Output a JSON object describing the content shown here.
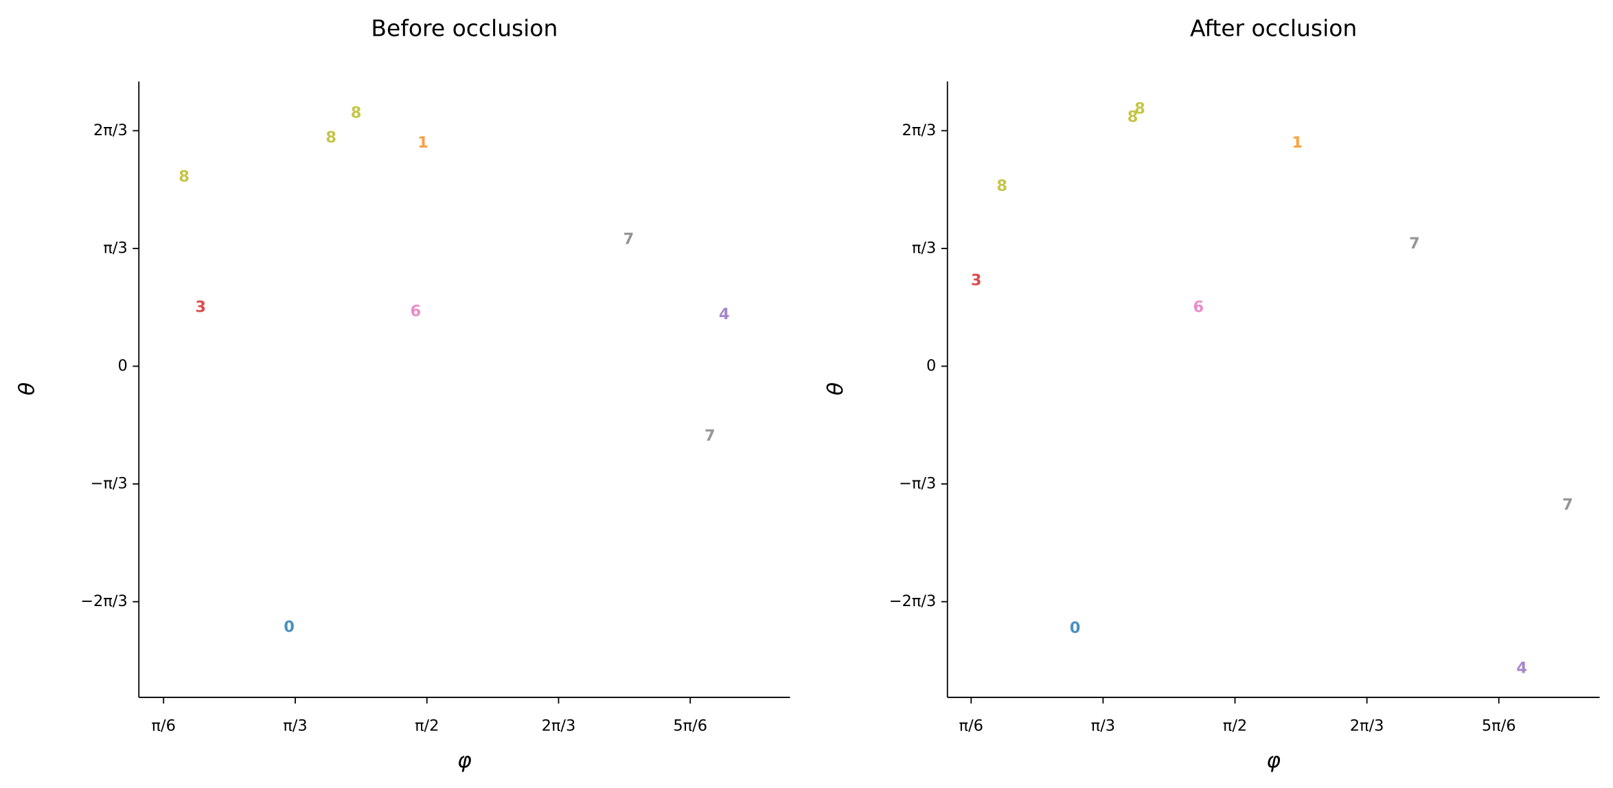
{
  "chart_data": [
    {
      "type": "scatter",
      "title": "Before occlusion",
      "xlabel": "φ",
      "ylabel": "θ",
      "xlim": [
        0.4254,
        3.0148
      ],
      "ylim": [
        -2.945,
        2.533
      ],
      "xticks": [
        {
          "value": 0.5236,
          "label": "π/6"
        },
        {
          "value": 1.0472,
          "label": "π/3"
        },
        {
          "value": 1.5708,
          "label": "π/2"
        },
        {
          "value": 2.0944,
          "label": "2π/3"
        },
        {
          "value": 2.618,
          "label": "5π/6"
        }
      ],
      "yticks": [
        {
          "value": -2.0944,
          "label": "−2π/3"
        },
        {
          "value": -1.0472,
          "label": "−π/3"
        },
        0,
        {
          "value": 1.0472,
          "label": "π/3"
        },
        {
          "value": 2.0944,
          "label": "2π/3"
        }
      ],
      "point_labels": [
        "8",
        "8",
        "8",
        "1",
        "7",
        "3",
        "6",
        "4",
        "7",
        "0"
      ],
      "point_colors": [
        "#c5c548",
        "#c5c548",
        "#c5c548",
        "#f9a040",
        "#959595",
        "#dc4a4b",
        "#e88ccc",
        "#a585c8",
        "#959595",
        "#4a90c0"
      ],
      "x": [
        0.605,
        1.19,
        1.289,
        1.555,
        2.373,
        0.671,
        1.526,
        2.753,
        2.696,
        1.023
      ],
      "values": [
        1.683,
        2.03,
        2.25,
        1.985,
        1.125,
        0.521,
        0.485,
        0.457,
        -0.622,
        -2.323
      ]
    },
    {
      "type": "scatter",
      "title": "After occlusion",
      "xlabel": "φ",
      "ylabel": "θ",
      "xlim": [
        0.4295,
        3.018
      ],
      "ylim": [
        -2.945,
        2.533
      ],
      "xticks": [
        {
          "value": 0.5236,
          "label": "π/6"
        },
        {
          "value": 1.0472,
          "label": "π/3"
        },
        {
          "value": 1.5708,
          "label": "π/2"
        },
        {
          "value": 2.0944,
          "label": "2π/3"
        },
        {
          "value": 2.618,
          "label": "5π/6"
        }
      ],
      "yticks": [
        {
          "value": -2.0944,
          "label": "−2π/3"
        },
        {
          "value": -1.0472,
          "label": "−π/3"
        },
        0,
        {
          "value": 1.0472,
          "label": "π/3"
        },
        {
          "value": 2.0944,
          "label": "2π/3"
        }
      ],
      "point_labels": [
        "8",
        "8",
        "8",
        "1",
        "7",
        "3",
        "6",
        "7",
        "0",
        "4"
      ],
      "point_colors": [
        "#c5c548",
        "#c5c548",
        "#c5c548",
        "#f9a040",
        "#959595",
        "#dc4a4b",
        "#e88ccc",
        "#959595",
        "#4a90c0",
        "#a585c8"
      ],
      "x": [
        1.193,
        1.165,
        0.646,
        1.818,
        2.283,
        0.544,
        1.426,
        2.891,
        0.936,
        2.709
      ],
      "values": [
        2.286,
        2.213,
        1.6,
        1.985,
        1.088,
        0.759,
        0.521,
        -1.235,
        -2.332,
        -2.689
      ]
    }
  ]
}
